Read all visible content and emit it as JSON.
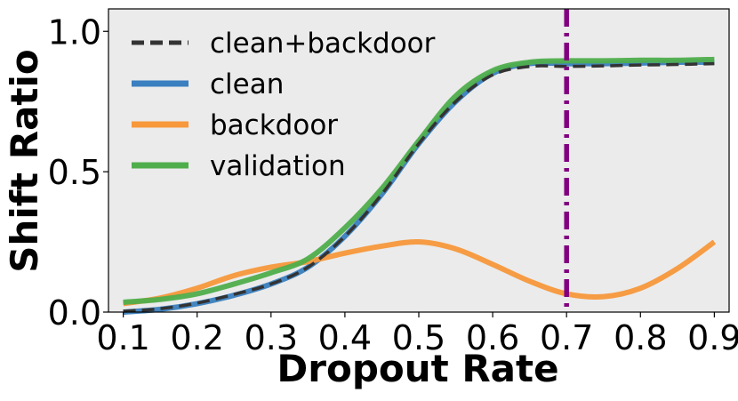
{
  "chart_data": {
    "type": "line",
    "title": "",
    "xlabel": "Dropout Rate",
    "ylabel": "Shift Ratio",
    "xlim": [
      0.08,
      0.92
    ],
    "ylim": [
      0.0,
      1.08
    ],
    "xticks": [
      0.1,
      0.2,
      0.3,
      0.4,
      0.5,
      0.6,
      0.7,
      0.8,
      0.9
    ],
    "xtick_labels": [
      "0.1",
      "0.2",
      "0.3",
      "0.4",
      "0.5",
      "0.6",
      "0.7",
      "0.8",
      "0.9"
    ],
    "yticks": [
      0.0,
      0.5,
      1.0
    ],
    "ytick_labels": [
      "0.0",
      "0.5",
      "1.0"
    ],
    "grid": false,
    "background": "#ebebeb",
    "legend_position": "upper-left",
    "x": [
      0.1,
      0.15,
      0.2,
      0.25,
      0.3,
      0.35,
      0.4,
      0.45,
      0.5,
      0.55,
      0.6,
      0.65,
      0.7,
      0.75,
      0.8,
      0.85,
      0.9
    ],
    "series": [
      {
        "name": "clean",
        "color": "#3a7fbf",
        "style": "solid",
        "values": [
          0.0,
          0.01,
          0.03,
          0.06,
          0.1,
          0.16,
          0.27,
          0.42,
          0.6,
          0.75,
          0.85,
          0.885,
          0.885,
          0.885,
          0.887,
          0.89,
          0.89
        ]
      },
      {
        "name": "backdoor",
        "color": "#f7983b",
        "style": "solid",
        "values": [
          0.03,
          0.05,
          0.085,
          0.13,
          0.16,
          0.18,
          0.21,
          0.235,
          0.25,
          0.225,
          0.17,
          0.11,
          0.065,
          0.055,
          0.085,
          0.155,
          0.25
        ]
      },
      {
        "name": "validation",
        "color": "#4fae4c",
        "style": "solid",
        "values": [
          0.035,
          0.045,
          0.065,
          0.1,
          0.14,
          0.19,
          0.3,
          0.44,
          0.61,
          0.77,
          0.86,
          0.89,
          0.895,
          0.895,
          0.897,
          0.897,
          0.9
        ]
      },
      {
        "name": "clean+backdoor",
        "color": "#333333",
        "style": "dashed",
        "values": [
          0.003,
          0.012,
          0.032,
          0.063,
          0.1,
          0.16,
          0.27,
          0.42,
          0.6,
          0.75,
          0.845,
          0.875,
          0.875,
          0.877,
          0.88,
          0.882,
          0.885
        ]
      }
    ],
    "legend_order": [
      "clean+backdoor",
      "clean",
      "backdoor",
      "validation"
    ],
    "reference_line": {
      "orientation": "vertical",
      "x": 0.7,
      "color": "#800080",
      "style": "dashdot"
    }
  }
}
